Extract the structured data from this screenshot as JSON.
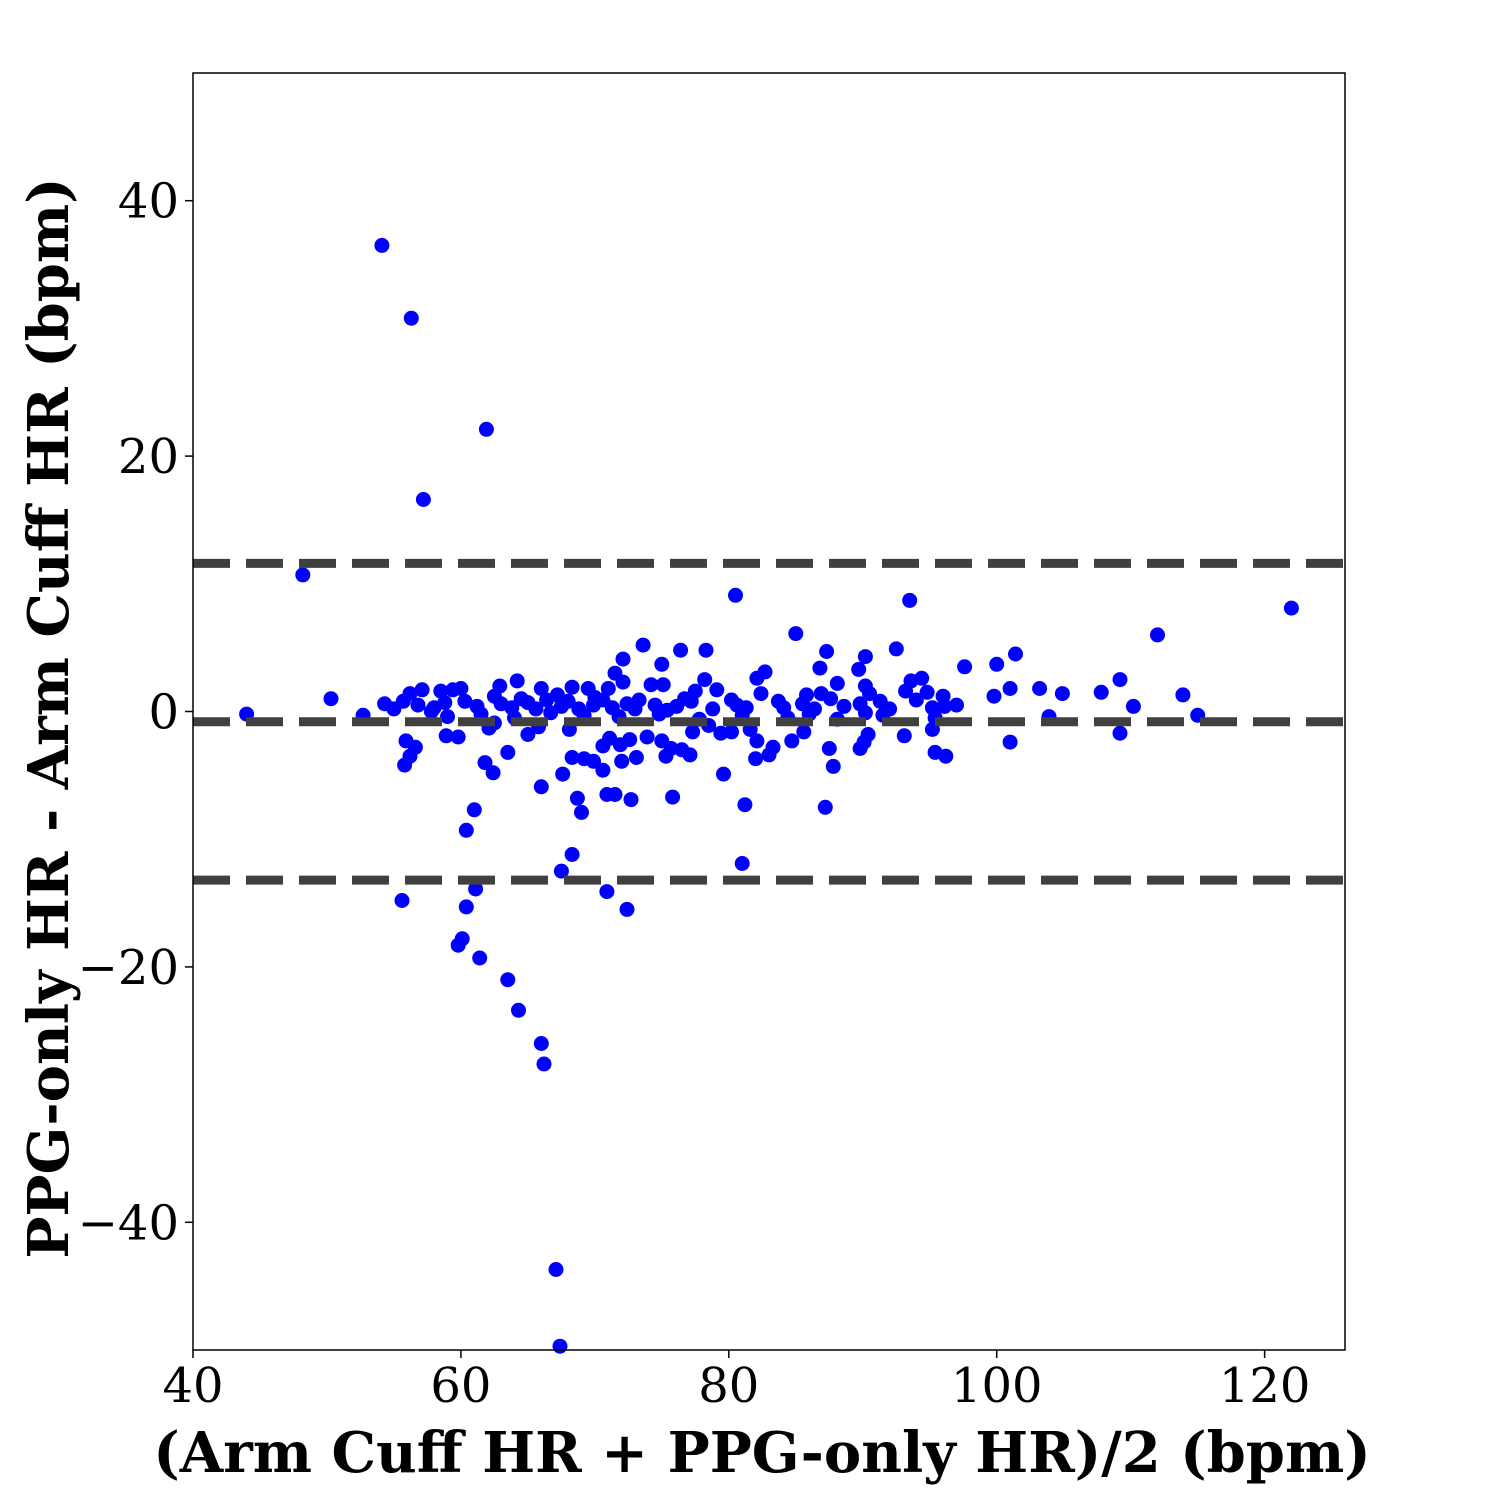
{
  "chart_data": {
    "type": "scatter",
    "title": "",
    "xlabel": "(Arm Cuff HR + PPG-only HR)/2 (bpm)",
    "ylabel": "PPG-only HR - Arm Cuff HR (bpm)",
    "xlim": [
      40,
      126
    ],
    "ylim": [
      -50,
      50
    ],
    "x_ticks": [
      40,
      60,
      80,
      100,
      120
    ],
    "y_ticks": [
      -40,
      -20,
      0,
      20,
      40
    ],
    "x_tick_labels": [
      "40",
      "60",
      "80",
      "100",
      "120"
    ],
    "y_tick_labels": [
      "−40",
      "−20",
      "0",
      "20",
      "40"
    ],
    "grid": false,
    "legend": "none",
    "point_color": "#0000ff",
    "line_color": "#404040",
    "reference_lines": [
      {
        "label": "upper limit of agreement",
        "y": 11.6
      },
      {
        "label": "mean difference",
        "y": -0.8
      },
      {
        "label": "lower limit of agreement",
        "y": -13.2
      }
    ],
    "points": [
      [
        44.0,
        -0.2
      ],
      [
        48.2,
        10.7
      ],
      [
        50.3,
        1.0
      ],
      [
        52.7,
        -0.3
      ],
      [
        54.1,
        36.5
      ],
      [
        56.3,
        30.8
      ],
      [
        57.2,
        16.6
      ],
      [
        61.9,
        22.1
      ],
      [
        80.5,
        9.1
      ],
      [
        93.5,
        8.7
      ],
      [
        122.0,
        8.1
      ],
      [
        85.0,
        6.1
      ],
      [
        112.0,
        6.0
      ],
      [
        73.6,
        5.2
      ],
      [
        92.5,
        4.9
      ],
      [
        76.4,
        4.8
      ],
      [
        78.3,
        4.8
      ],
      [
        87.3,
        4.7
      ],
      [
        101.4,
        4.5
      ],
      [
        90.2,
        4.3
      ],
      [
        72.1,
        4.1
      ],
      [
        75.0,
        3.7
      ],
      [
        100.0,
        3.7
      ],
      [
        97.6,
        3.5
      ],
      [
        86.8,
        3.4
      ],
      [
        89.7,
        3.3
      ],
      [
        71.5,
        3.0
      ],
      [
        82.7,
        3.1
      ],
      [
        82.1,
        2.6
      ],
      [
        94.4,
        2.6
      ],
      [
        109.2,
        2.5
      ],
      [
        64.2,
        2.4
      ],
      [
        78.2,
        2.5
      ],
      [
        93.6,
        2.4
      ],
      [
        88.1,
        2.2
      ],
      [
        62.9,
        2.0
      ],
      [
        72.1,
        2.3
      ],
      [
        74.2,
        2.1
      ],
      [
        75.1,
        2.1
      ],
      [
        90.2,
        2.0
      ],
      [
        57.1,
        1.7
      ],
      [
        59.4,
        1.7
      ],
      [
        60.0,
        1.8
      ],
      [
        56.2,
        1.4
      ],
      [
        58.5,
        1.6
      ],
      [
        66.0,
        1.8
      ],
      [
        68.3,
        1.9
      ],
      [
        69.5,
        1.8
      ],
      [
        71.0,
        1.8
      ],
      [
        77.5,
        1.6
      ],
      [
        79.1,
        1.7
      ],
      [
        82.4,
        1.4
      ],
      [
        85.8,
        1.3
      ],
      [
        86.9,
        1.4
      ],
      [
        90.5,
        1.4
      ],
      [
        93.2,
        1.6
      ],
      [
        94.8,
        1.5
      ],
      [
        96.0,
        1.2
      ],
      [
        99.8,
        1.2
      ],
      [
        101.0,
        1.8
      ],
      [
        103.2,
        1.8
      ],
      [
        104.9,
        1.4
      ],
      [
        107.8,
        1.5
      ],
      [
        113.9,
        1.3
      ],
      [
        62.5,
        1.2
      ],
      [
        64.5,
        1.0
      ],
      [
        67.2,
        1.3
      ],
      [
        70.0,
        1.1
      ],
      [
        73.3,
        0.9
      ],
      [
        76.7,
        1.0
      ],
      [
        80.2,
        0.9
      ],
      [
        83.7,
        0.8
      ],
      [
        87.6,
        1.0
      ],
      [
        91.3,
        0.8
      ],
      [
        94.0,
        0.9
      ],
      [
        96.1,
        0.4
      ],
      [
        110.2,
        0.4
      ],
      [
        54.3,
        0.6
      ],
      [
        55.0,
        0.2
      ],
      [
        55.7,
        0.8
      ],
      [
        56.8,
        0.5
      ],
      [
        58.0,
        0.3
      ],
      [
        58.8,
        0.7
      ],
      [
        60.3,
        0.8
      ],
      [
        61.2,
        0.4
      ],
      [
        63.0,
        0.6
      ],
      [
        63.8,
        0.3
      ],
      [
        65.0,
        0.7
      ],
      [
        65.6,
        0.2
      ],
      [
        66.4,
        0.9
      ],
      [
        67.5,
        0.4
      ],
      [
        68.0,
        0.8
      ],
      [
        68.8,
        0.2
      ],
      [
        69.9,
        0.5
      ],
      [
        70.6,
        0.9
      ],
      [
        71.3,
        0.3
      ],
      [
        72.4,
        0.6
      ],
      [
        73.0,
        0.2
      ],
      [
        74.5,
        0.5
      ],
      [
        75.4,
        0.1
      ],
      [
        76.1,
        0.4
      ],
      [
        77.2,
        0.8
      ],
      [
        78.8,
        0.2
      ],
      [
        80.6,
        0.5
      ],
      [
        81.3,
        0.3
      ],
      [
        84.1,
        0.3
      ],
      [
        85.5,
        0.6
      ],
      [
        86.4,
        0.2
      ],
      [
        88.6,
        0.4
      ],
      [
        89.8,
        0.6
      ],
      [
        92.0,
        0.2
      ],
      [
        95.2,
        0.3
      ],
      [
        97.0,
        0.5
      ],
      [
        57.8,
        0.0
      ],
      [
        59.0,
        -0.4
      ],
      [
        61.5,
        -0.2
      ],
      [
        64.0,
        -0.5
      ],
      [
        66.7,
        -0.1
      ],
      [
        69.2,
        -0.3
      ],
      [
        71.8,
        -0.4
      ],
      [
        74.8,
        -0.2
      ],
      [
        77.8,
        -0.6
      ],
      [
        81.0,
        -0.3
      ],
      [
        84.4,
        -0.5
      ],
      [
        86.0,
        -0.2
      ],
      [
        88.1,
        -0.6
      ],
      [
        90.2,
        -0.1
      ],
      [
        91.5,
        -0.3
      ],
      [
        95.4,
        -0.5
      ],
      [
        103.9,
        -0.4
      ],
      [
        115.0,
        -0.3
      ],
      [
        55.9,
        -2.3
      ],
      [
        56.6,
        -2.8
      ],
      [
        56.2,
        -3.5
      ],
      [
        55.8,
        -4.2
      ],
      [
        58.9,
        -1.9
      ],
      [
        59.8,
        -2.0
      ],
      [
        62.1,
        -1.3
      ],
      [
        62.5,
        -0.9
      ],
      [
        63.5,
        -3.2
      ],
      [
        61.8,
        -4.0
      ],
      [
        62.4,
        -4.8
      ],
      [
        65.0,
        -1.8
      ],
      [
        65.8,
        -1.2
      ],
      [
        66.0,
        -5.9
      ],
      [
        67.6,
        -4.9
      ],
      [
        68.1,
        -1.4
      ],
      [
        68.3,
        -3.6
      ],
      [
        69.2,
        -3.7
      ],
      [
        69.9,
        -3.9
      ],
      [
        70.6,
        -2.7
      ],
      [
        70.6,
        -4.6
      ],
      [
        71.1,
        -2.1
      ],
      [
        71.9,
        -2.6
      ],
      [
        72.0,
        -3.9
      ],
      [
        72.6,
        -2.2
      ],
      [
        73.1,
        -3.6
      ],
      [
        73.9,
        -2.0
      ],
      [
        75.0,
        -2.3
      ],
      [
        75.3,
        -3.5
      ],
      [
        75.7,
        -2.9
      ],
      [
        76.5,
        -3.0
      ],
      [
        77.1,
        -3.4
      ],
      [
        77.3,
        -1.6
      ],
      [
        78.5,
        -1.1
      ],
      [
        79.6,
        -4.9
      ],
      [
        79.4,
        -1.7
      ],
      [
        80.2,
        -1.6
      ],
      [
        81.6,
        -1.4
      ],
      [
        82.1,
        -2.3
      ],
      [
        82.0,
        -3.7
      ],
      [
        83.0,
        -3.4
      ],
      [
        83.3,
        -2.8
      ],
      [
        84.7,
        -2.3
      ],
      [
        85.6,
        -1.6
      ],
      [
        87.5,
        -2.9
      ],
      [
        87.8,
        -4.3
      ],
      [
        89.8,
        -2.9
      ],
      [
        90.1,
        -2.4
      ],
      [
        90.4,
        -1.8
      ],
      [
        93.1,
        -1.9
      ],
      [
        95.2,
        -1.4
      ],
      [
        95.4,
        -3.2
      ],
      [
        96.2,
        -3.5
      ],
      [
        101.0,
        -2.4
      ],
      [
        109.2,
        -1.7
      ],
      [
        70.9,
        -6.5
      ],
      [
        72.7,
        -6.9
      ],
      [
        71.5,
        -6.5
      ],
      [
        75.8,
        -6.7
      ],
      [
        68.7,
        -6.8
      ],
      [
        69.0,
        -7.9
      ],
      [
        81.2,
        -7.3
      ],
      [
        87.2,
        -7.5
      ],
      [
        61.0,
        -7.7
      ],
      [
        60.4,
        -9.3
      ],
      [
        68.3,
        -11.2
      ],
      [
        67.5,
        -12.5
      ],
      [
        81.0,
        -11.9
      ],
      [
        55.6,
        -14.8
      ],
      [
        60.4,
        -15.3
      ],
      [
        61.1,
        -13.9
      ],
      [
        70.9,
        -14.1
      ],
      [
        72.4,
        -15.5
      ],
      [
        59.8,
        -18.3
      ],
      [
        60.1,
        -17.8
      ],
      [
        61.4,
        -19.3
      ],
      [
        63.5,
        -21.0
      ],
      [
        64.3,
        -23.4
      ],
      [
        66.0,
        -26.0
      ],
      [
        66.2,
        -27.6
      ],
      [
        67.1,
        -43.7
      ],
      [
        67.4,
        -49.7
      ]
    ]
  }
}
